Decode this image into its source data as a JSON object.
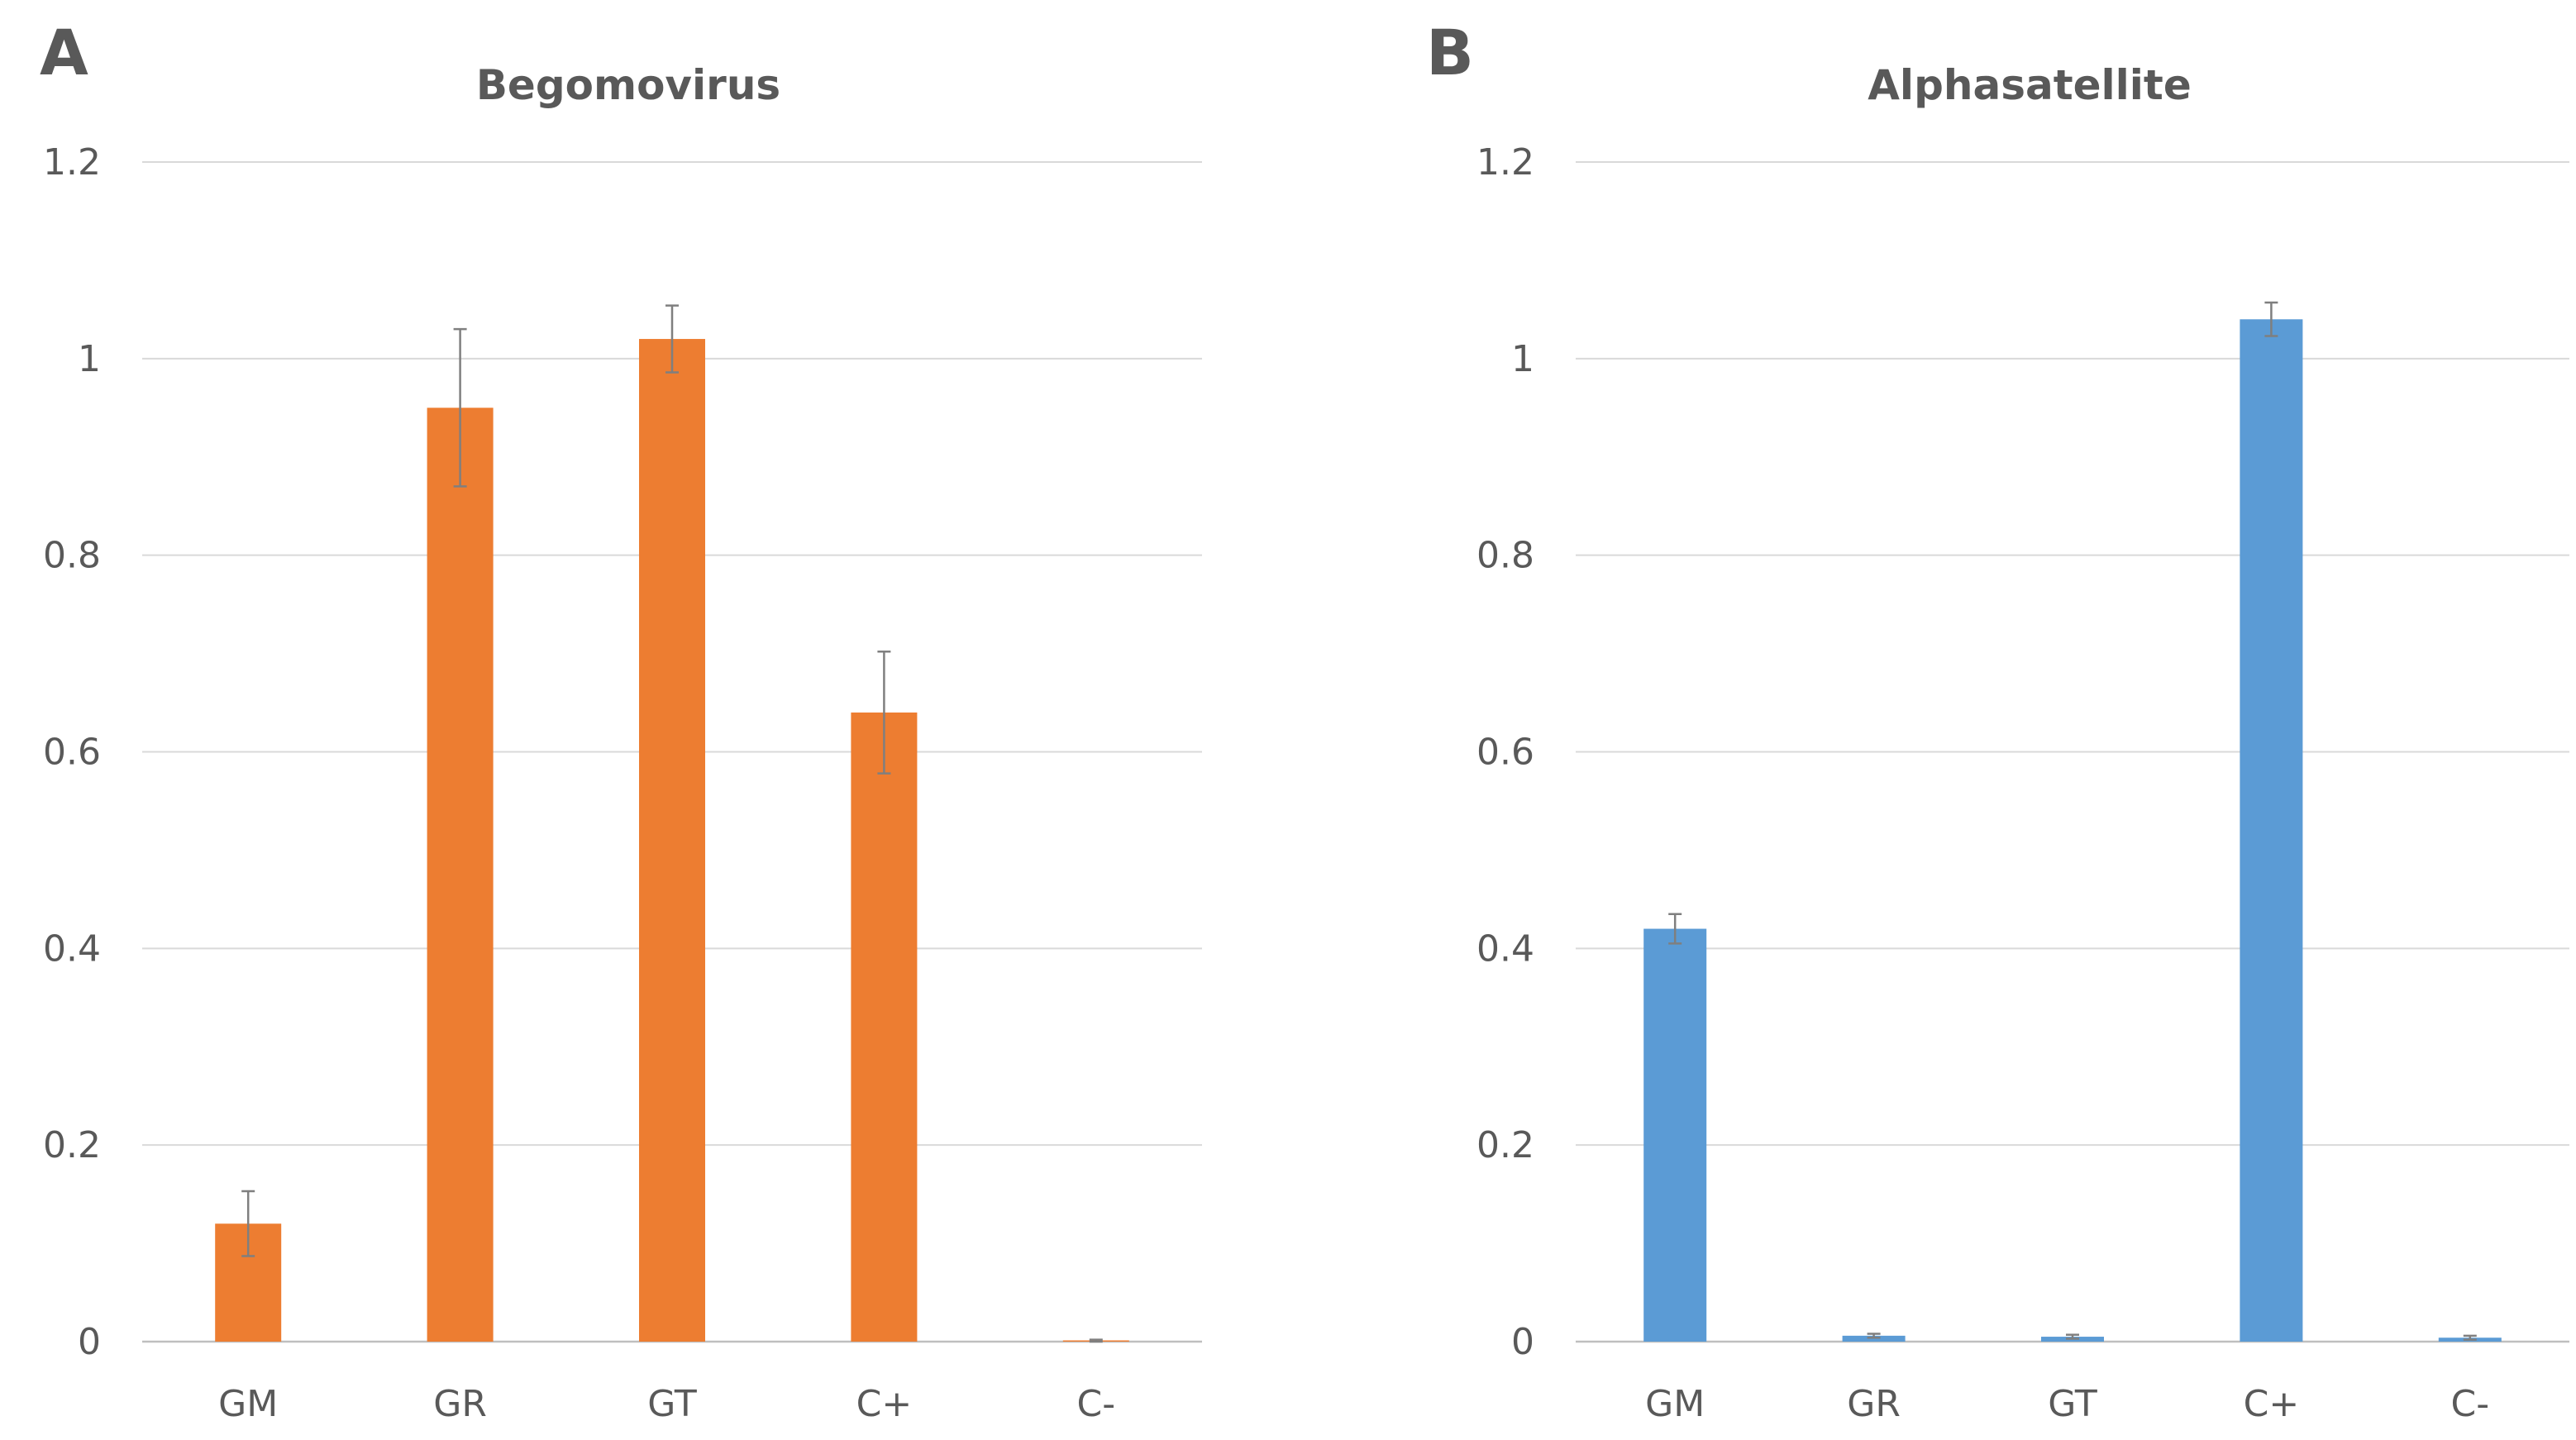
{
  "chart_data": [
    {
      "panel": "A",
      "type": "bar",
      "title": "Begomovirus",
      "xlabel": "",
      "ylabel": "",
      "categories": [
        "GM",
        "GR",
        "GT",
        "C+",
        "C-"
      ],
      "values": [
        0.12,
        0.95,
        1.02,
        0.64,
        0.001
      ],
      "errors": [
        0.033,
        0.08,
        0.034,
        0.062,
        0.001
      ],
      "ylim": [
        0,
        1.2
      ],
      "yticks": [
        "0",
        "0.2",
        "0.4",
        "0.6",
        "0.8",
        "1",
        "1.2"
      ],
      "grid": true,
      "color": "#ED7D31"
    },
    {
      "panel": "B",
      "type": "bar",
      "title": "Alphasatellite",
      "xlabel": "",
      "ylabel": "",
      "categories": [
        "GM",
        "GR",
        "GT",
        "C+",
        "C-"
      ],
      "values": [
        0.42,
        0.006,
        0.005,
        1.04,
        0.004
      ],
      "errors": [
        0.015,
        0.002,
        0.002,
        0.017,
        0.002
      ],
      "ylim": [
        0,
        1.2
      ],
      "yticks": [
        "0",
        "0.2",
        "0.4",
        "0.6",
        "0.8",
        "1",
        "1.2"
      ],
      "grid": true,
      "color": "#5B9BD5"
    }
  ]
}
